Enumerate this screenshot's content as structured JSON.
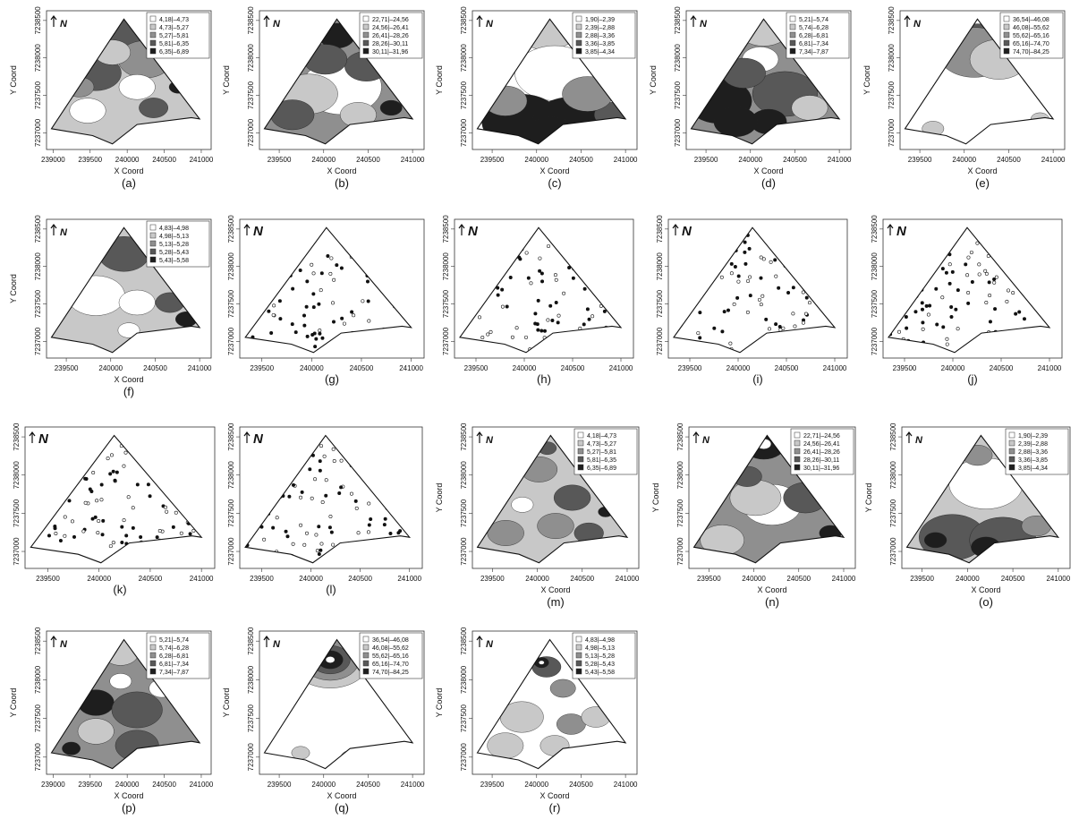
{
  "axis": {
    "xlabel": "X Coord",
    "ylabel": "Y Coord",
    "north": "N"
  },
  "legends": {
    "L1": [
      "4,18|–4,73",
      "4,73|–5,27",
      "5,27|–5,81",
      "5,81|–6,35",
      "6,35|–6,89"
    ],
    "L2": [
      "22,71|–24,56",
      "24,56|–26,41",
      "26,41|–28,26",
      "28,26|–30,11",
      "30,11|–31,96"
    ],
    "L3": [
      "1,90|–2,39",
      "2,39|–2,88",
      "2,88|–3,36",
      "3,36|–3,85",
      "3,85|–4,34"
    ],
    "L4": [
      "5,21|–5,74",
      "5,74|–6,28",
      "6,28|–6,81",
      "6,81|–7,34",
      "7,34|–7,87"
    ],
    "L5": [
      "36,54|–46,08",
      "46,08|–55,62",
      "55,62|–65,16",
      "65,16|–74,70",
      "74,70|–84,25"
    ],
    "L6": [
      "4,83|–4,98",
      "4,98|–5,13",
      "5,13|–5,28",
      "5,28|–5,43",
      "5,43|–5,58"
    ]
  },
  "palette": [
    "#ffffff",
    "#c8c8c8",
    "#8f8f8f",
    "#585858",
    "#1e1e1e"
  ],
  "panels": [
    {
      "id": "a",
      "kind": "map",
      "legend": "L1",
      "xticks": [
        "239000",
        "239500",
        "240000",
        "240500",
        "241000"
      ]
    },
    {
      "id": "b",
      "kind": "map",
      "legend": "L2",
      "xticks": [
        "239500",
        "240000",
        "240500",
        "241000"
      ]
    },
    {
      "id": "c",
      "kind": "map",
      "legend": "L3",
      "xticks": [
        "239500",
        "240000",
        "240500",
        "241000"
      ]
    },
    {
      "id": "d",
      "kind": "map",
      "legend": "L4",
      "xticks": [
        "239500",
        "240000",
        "240500",
        "241000"
      ]
    },
    {
      "id": "e",
      "kind": "map",
      "legend": "L5",
      "xticks": [
        "239500",
        "240000",
        "240500",
        "241000"
      ]
    },
    {
      "id": "f",
      "kind": "map",
      "legend": "L6",
      "xticks": [
        "239500",
        "240000",
        "240500",
        "241000"
      ]
    },
    {
      "id": "g",
      "kind": "points",
      "xticks": [
        "239500",
        "240000",
        "240500",
        "241000"
      ]
    },
    {
      "id": "h",
      "kind": "points",
      "xticks": [
        "239500",
        "240000",
        "240500",
        "241000"
      ]
    },
    {
      "id": "i",
      "kind": "points",
      "xticks": [
        "239500",
        "240000",
        "240500",
        "241000"
      ]
    },
    {
      "id": "j",
      "kind": "points",
      "xticks": [
        "239500",
        "240000",
        "240500",
        "241000"
      ]
    },
    {
      "id": "k",
      "kind": "points",
      "xticks": [
        "239500",
        "240000",
        "240500",
        "241000"
      ]
    },
    {
      "id": "l",
      "kind": "points",
      "xticks": [
        "239500",
        "240000",
        "240500",
        "241000"
      ]
    },
    {
      "id": "m",
      "kind": "map",
      "legend": "L1",
      "xticks": [
        "239500",
        "240000",
        "240500",
        "241000"
      ]
    },
    {
      "id": "n",
      "kind": "map",
      "legend": "L2",
      "xticks": [
        "239500",
        "240000",
        "240500",
        "241000"
      ]
    },
    {
      "id": "o",
      "kind": "map",
      "legend": "L3",
      "xticks": [
        "239500",
        "240000",
        "240500",
        "241000"
      ]
    },
    {
      "id": "p",
      "kind": "map",
      "legend": "L4",
      "xticks": [
        "239000",
        "239500",
        "240000",
        "240500",
        "241000"
      ]
    },
    {
      "id": "q",
      "kind": "map",
      "legend": "L5",
      "xticks": [
        "239500",
        "240000",
        "240500",
        "241000"
      ]
    },
    {
      "id": "r",
      "kind": "map",
      "legend": "L6",
      "xticks": [
        "239500",
        "240000",
        "240500",
        "241000"
      ]
    }
  ],
  "yticks": [
    "7237000",
    "7237500",
    "7238000",
    "7238500"
  ]
}
